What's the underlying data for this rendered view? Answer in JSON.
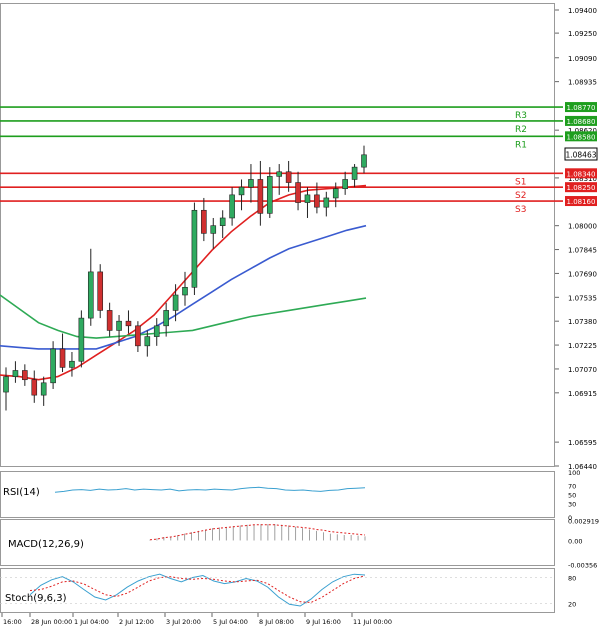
{
  "chart_data": {
    "type": "candlestick",
    "price_axis": {
      "ticks": [
        "1.09400",
        "1.09250",
        "1.09090",
        "1.08935",
        "1.08620",
        "1.08310",
        "1.08000",
        "1.07845",
        "1.07690",
        "1.07535",
        "1.07380",
        "1.07225",
        "1.07070",
        "1.06915",
        "1.06595",
        "1.06440"
      ],
      "range": [
        1.0644,
        1.094
      ]
    },
    "time_axis": {
      "labels": [
        "16:00",
        "28 Jun 00:00",
        "1 Jul 04:00",
        "2 Jul 12:00",
        "3 Jul 20:00",
        "5 Jul 04:00",
        "8 Jul 08:00",
        "9 Jul 16:00",
        "11 Jul 00:00"
      ]
    },
    "current_price": "1.08463",
    "levels": [
      {
        "name": "R3",
        "value": 1.0877,
        "label": "1.08770",
        "color": "#1e9e1e"
      },
      {
        "name": "R2",
        "value": 1.0868,
        "label": "1.08680",
        "color": "#1e9e1e"
      },
      {
        "name": "R1",
        "value": 1.0858,
        "label": "1.08580",
        "color": "#1e9e1e"
      },
      {
        "name": "S1",
        "value": 1.0834,
        "label": "1.08340",
        "color": "#e02020"
      },
      {
        "name": "S2",
        "value": 1.0825,
        "label": "1.08250",
        "color": "#e02020"
      },
      {
        "name": "S3",
        "value": 1.0816,
        "label": "1.08160",
        "color": "#e02020"
      }
    ],
    "candles": [
      [
        1.0692,
        1.0708,
        1.068,
        1.0702
      ],
      [
        1.0702,
        1.0712,
        1.0698,
        1.0706
      ],
      [
        1.0706,
        1.071,
        1.0696,
        1.07
      ],
      [
        1.07,
        1.0706,
        1.0685,
        1.069
      ],
      [
        1.069,
        1.0702,
        1.0683,
        1.0698
      ],
      [
        1.0698,
        1.0725,
        1.0694,
        1.072
      ],
      [
        1.072,
        1.073,
        1.0705,
        1.0708
      ],
      [
        1.0708,
        1.0718,
        1.0702,
        1.0712
      ],
      [
        1.0712,
        1.0745,
        1.0708,
        1.074
      ],
      [
        1.074,
        1.0785,
        1.0735,
        1.077
      ],
      [
        1.077,
        1.0775,
        1.074,
        1.0745
      ],
      [
        1.0745,
        1.075,
        1.0728,
        1.0732
      ],
      [
        1.0732,
        1.0742,
        1.0722,
        1.0738
      ],
      [
        1.0738,
        1.0745,
        1.073,
        1.0735
      ],
      [
        1.0735,
        1.0738,
        1.0718,
        1.0722
      ],
      [
        1.0722,
        1.0732,
        1.0715,
        1.0728
      ],
      [
        1.0728,
        1.074,
        1.0722,
        1.0735
      ],
      [
        1.0735,
        1.075,
        1.0728,
        1.0745
      ],
      [
        1.0745,
        1.0762,
        1.0738,
        1.0755
      ],
      [
        1.0755,
        1.077,
        1.0748,
        1.076
      ],
      [
        1.076,
        1.0815,
        1.0755,
        1.081
      ],
      [
        1.081,
        1.0818,
        1.079,
        1.0795
      ],
      [
        1.0795,
        1.0805,
        1.0785,
        1.08
      ],
      [
        1.08,
        1.081,
        1.0792,
        1.0805
      ],
      [
        1.0805,
        1.0825,
        1.08,
        1.082
      ],
      [
        1.082,
        1.083,
        1.081,
        1.0825
      ],
      [
        1.0825,
        1.084,
        1.0815,
        1.083
      ],
      [
        1.083,
        1.0842,
        1.08,
        1.0808
      ],
      [
        1.0808,
        1.0838,
        1.0805,
        1.0832
      ],
      [
        1.0832,
        1.084,
        1.082,
        1.0835
      ],
      [
        1.0835,
        1.0842,
        1.0822,
        1.0828
      ],
      [
        1.0828,
        1.0835,
        1.081,
        1.0815
      ],
      [
        1.0815,
        1.0825,
        1.0805,
        1.082
      ],
      [
        1.082,
        1.0828,
        1.0808,
        1.0812
      ],
      [
        1.0812,
        1.0822,
        1.0806,
        1.0818
      ],
      [
        1.0818,
        1.0828,
        1.0812,
        1.0824
      ],
      [
        1.0824,
        1.0835,
        1.082,
        1.083
      ],
      [
        1.083,
        1.084,
        1.0825,
        1.0838
      ],
      [
        1.0838,
        1.0852,
        1.0834,
        1.0846
      ]
    ],
    "moving_averages": [
      {
        "color": "#e02020",
        "values": [
          1.0703,
          1.0702,
          1.07,
          1.0702,
          1.0708,
          1.0716,
          1.0724,
          1.0732,
          1.0742,
          1.0756,
          1.077,
          1.0784,
          1.0796,
          1.0806,
          1.0815,
          1.082,
          1.0823,
          1.0824,
          1.0825,
          1.0826
        ]
      },
      {
        "color": "#3a5bd0",
        "values": [
          1.0722,
          1.0721,
          1.072,
          1.072,
          1.072,
          1.072,
          1.0724,
          1.0728,
          1.0734,
          1.0741,
          1.0749,
          1.0757,
          1.0765,
          1.0772,
          1.0779,
          1.0785,
          1.0789,
          1.0793,
          1.0797,
          1.08
        ]
      },
      {
        "color": "#2eaa55",
        "values": [
          1.0755,
          1.0746,
          1.0737,
          1.0732,
          1.0728,
          1.0727,
          1.0728,
          1.0729,
          1.073,
          1.0731,
          1.0732,
          1.0735,
          1.0738,
          1.0741,
          1.0743,
          1.0745,
          1.0747,
          1.0749,
          1.0751,
          1.0753
        ]
      }
    ],
    "rsi": {
      "label": "RSI(14)",
      "levels": [
        "100",
        "70",
        "50",
        "30",
        "0"
      ],
      "values": [
        55,
        57,
        60,
        61,
        59,
        62,
        60,
        61,
        63,
        60,
        62,
        61,
        60,
        62,
        58,
        60,
        61,
        60,
        62,
        61,
        60,
        63,
        65,
        66,
        64,
        63,
        60,
        59,
        60,
        58,
        57,
        59,
        60,
        63,
        64,
        65
      ]
    },
    "macd": {
      "label": "MACD(12,26,9)",
      "levels": [
        "0.002919",
        "0.00",
        "-0.00356"
      ],
      "histogram": [
        0.0001,
        0.0003,
        0.0005,
        0.0006,
        0.0008,
        0.001,
        0.0012,
        0.0014,
        0.0016,
        0.0018,
        0.0019,
        0.002,
        0.0021,
        0.0022,
        0.0023,
        0.0023,
        0.0024,
        0.0024,
        0.0024,
        0.0023,
        0.0022,
        0.002,
        0.0018,
        0.0016,
        0.0014,
        0.0012,
        0.001,
        0.0009,
        0.0008,
        0.0008,
        0.0007,
        0.0006
      ],
      "signal": [
        0.0001,
        0.0002,
        0.0004,
        0.0005,
        0.0007,
        0.0009,
        0.0011,
        0.0013,
        0.0015,
        0.0017,
        0.0018,
        0.0019,
        0.002,
        0.0021,
        0.0022,
        0.0023,
        0.0023,
        0.0023,
        0.0023,
        0.0022,
        0.0021,
        0.002,
        0.0019,
        0.0018,
        0.0016,
        0.0015,
        0.0013,
        0.0012,
        0.0011,
        0.001,
        0.0009,
        0.0008
      ]
    },
    "stoch": {
      "label": "Stoch(9,6,3)",
      "levels": [
        "80",
        "20"
      ],
      "k": [
        40,
        62,
        75,
        82,
        70,
        52,
        35,
        28,
        40,
        58,
        72,
        82,
        88,
        78,
        70,
        80,
        85,
        72,
        66,
        70,
        78,
        72,
        58,
        35,
        18,
        14,
        30,
        52,
        70,
        82,
        88,
        86
      ],
      "d": [
        50,
        52,
        60,
        70,
        72,
        65,
        52,
        40,
        36,
        44,
        58,
        72,
        80,
        82,
        78,
        76,
        78,
        76,
        72,
        70,
        72,
        74,
        66,
        50,
        35,
        24,
        22,
        34,
        50,
        66,
        78,
        84
      ]
    }
  }
}
